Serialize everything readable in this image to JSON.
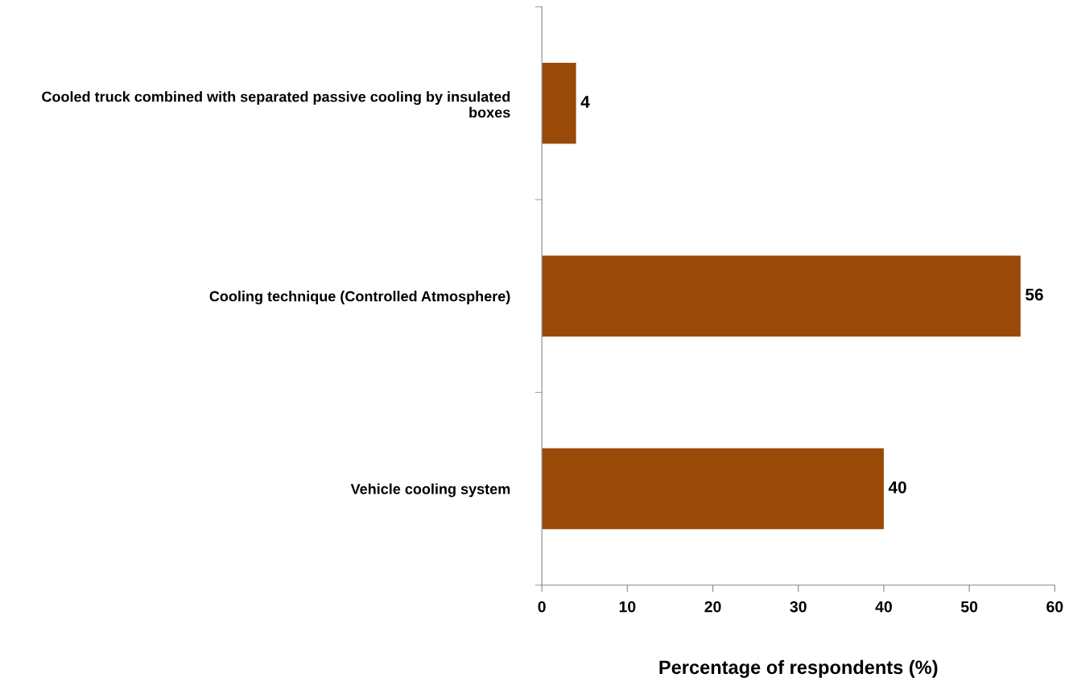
{
  "chart_data": {
    "type": "bar",
    "orientation": "horizontal",
    "xlabel": "Percentage of respondents (%)",
    "categories": [
      "Cooled truck combined with separated passive cooling by insulated boxes",
      "Cooling technique (Controlled Atmosphere)",
      "Vehicle cooling system"
    ],
    "values": [
      4,
      56,
      40
    ],
    "color": "#9a4a08",
    "xlim": [
      0,
      60
    ],
    "xticks": [
      0,
      10,
      20,
      30,
      40,
      50,
      60
    ],
    "data_labels": true,
    "grid": false,
    "legend": false
  }
}
